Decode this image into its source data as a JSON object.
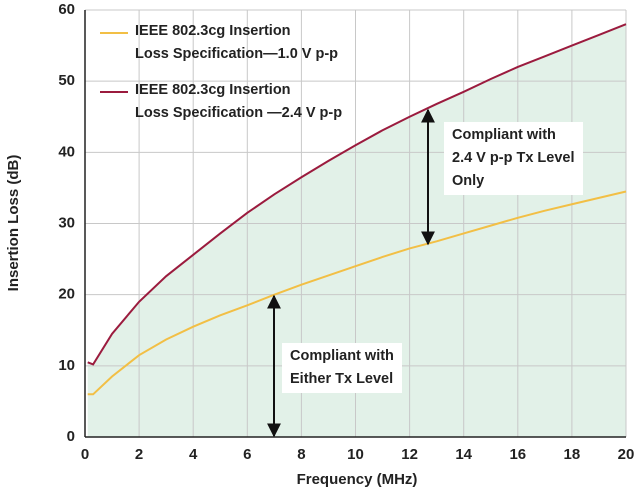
{
  "chart_data": {
    "type": "line",
    "x_label": "Frequency (MHz)",
    "y_label": "Insertion Loss (dB)",
    "x": [
      0.1,
      0.3,
      1,
      2,
      3,
      4,
      5,
      6,
      7,
      8,
      9,
      10,
      11,
      12,
      13,
      14,
      15,
      16,
      17,
      18,
      19,
      20
    ],
    "series": [
      {
        "name": "IEEE 802.3cg Insertion\nLoss Specification—1.0 V p-p",
        "color": "#f2bf45",
        "values": [
          6,
          6,
          8.5,
          11.5,
          13.7,
          15.5,
          17.1,
          18.5,
          20,
          21.4,
          22.7,
          24,
          25.3,
          26.5,
          27.5,
          28.6,
          29.7,
          30.8,
          31.8,
          32.7,
          33.6,
          34.5
        ]
      },
      {
        "name": "IEEE 802.3cg Insertion\nLoss Specification —2.4 V p-p",
        "color": "#9b1b3e",
        "values": [
          10.5,
          10.2,
          14.5,
          19,
          22.6,
          25.6,
          28.6,
          31.5,
          34.1,
          36.5,
          38.8,
          41,
          43.1,
          45,
          46.8,
          48.5,
          50.3,
          52,
          53.5,
          55,
          56.5,
          58
        ]
      }
    ],
    "area_color": "#e2f1e8",
    "annotations": [
      "Compliant with\n2.4 V p-p Tx Level\nOnly",
      "Compliant with\nEither Tx Level"
    ],
    "xlim": [
      0,
      20
    ],
    "xticks": [
      0,
      2,
      4,
      6,
      8,
      10,
      12,
      14,
      16,
      18,
      20
    ],
    "ylim": [
      0,
      60
    ],
    "yticks": [
      0,
      10,
      20,
      30,
      40,
      50,
      60
    ],
    "grid": true
  }
}
